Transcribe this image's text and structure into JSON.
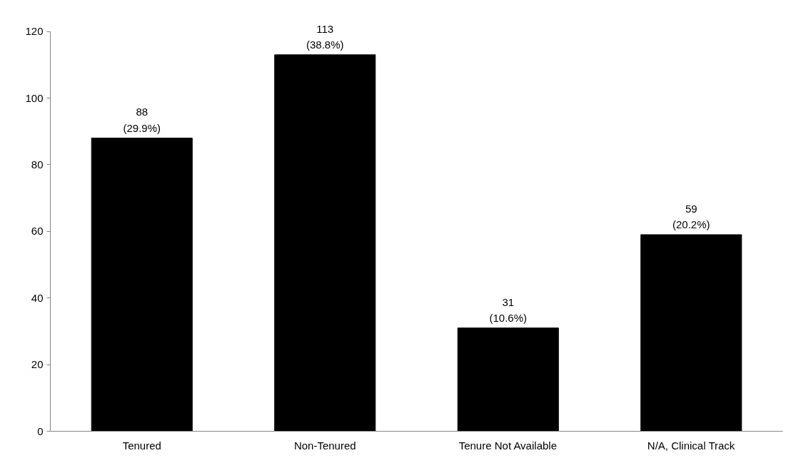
{
  "chart_data": {
    "type": "bar",
    "categories": [
      "Tenured",
      "Non-Tenured",
      "Tenure Not Available",
      "N/A, Clinical Track"
    ],
    "values": [
      88,
      113,
      31,
      59
    ],
    "color": "#000000",
    "value_labels": [
      "88\n(29.9%)",
      "113\n(38.8%)",
      "31\n(10.6%)",
      "59\n(20.2%)"
    ],
    "ylim": [
      0,
      120
    ],
    "yticks": [
      0,
      20,
      40,
      60,
      80,
      100,
      120
    ],
    "grid": false
  }
}
